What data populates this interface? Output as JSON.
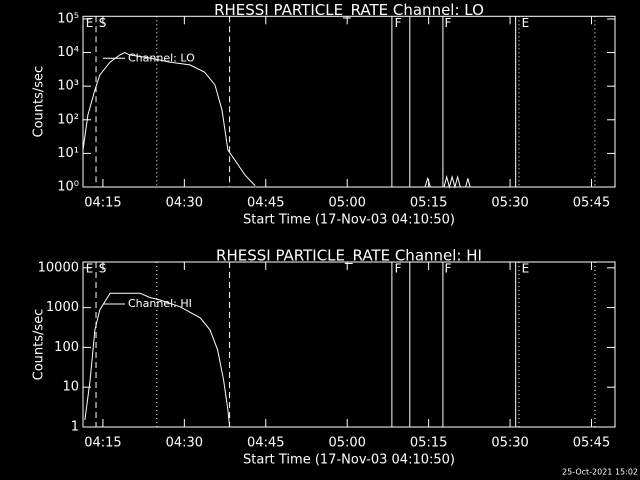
{
  "chart_data": [
    {
      "type": "line",
      "log_y": true,
      "grid": false,
      "title": "RHESSI PARTICLE_RATE Channel: LO",
      "xlabel": "Start Time (17-Nov-03 04:10:50)",
      "ylabel": "Counts/sec",
      "x": [
        0.5,
        1.4,
        2.7,
        3.6,
        5.5,
        7.3,
        8.2,
        9.1,
        12.8,
        16.5,
        20.2,
        22.9,
        24.8,
        26.1,
        27.2,
        28.5,
        30.3,
        32.2,
        40,
        63.5,
        64,
        64.5,
        66,
        67,
        67.5,
        68,
        68.5,
        69,
        69.5,
        70,
        70.5,
        71,
        71.4,
        71.8
      ],
      "series": [
        {
          "name": "Channel: LO",
          "color": "#ffffff",
          "values": [
            12.6,
            140,
            770,
            2150,
            5200,
            8500,
            10000,
            8500,
            6900,
            5200,
            4300,
            2600,
            1100,
            195,
            12.6,
            6.3,
            2.3,
            1.1,
            null,
            1,
            1.8,
            1,
            null,
            1,
            2,
            1,
            2,
            1,
            2,
            1,
            null,
            1,
            1.8,
            1
          ]
        }
      ],
      "xlim": [
        0.5,
        98.5
      ],
      "ylim": [
        1,
        120000
      ],
      "xticks": [
        {
          "value": 4.17,
          "label": "04:15"
        },
        {
          "value": 19.17,
          "label": "04:30"
        },
        {
          "value": 34.17,
          "label": "04:45"
        },
        {
          "value": 49.17,
          "label": "05:00"
        },
        {
          "value": 64.17,
          "label": "05:15"
        },
        {
          "value": 79.17,
          "label": "05:30"
        },
        {
          "value": 94.17,
          "label": "05:45"
        }
      ],
      "yticks": [
        {
          "value": 1,
          "label": "10⁰"
        },
        {
          "value": 10,
          "label": "10¹"
        },
        {
          "value": 100,
          "label": "10²"
        },
        {
          "value": 1000,
          "label": "10³"
        },
        {
          "value": 10000,
          "label": "10⁴"
        },
        {
          "value": 100000,
          "label": "10⁵"
        }
      ],
      "vlines": [
        {
          "x": 2.9,
          "style": "dashed"
        },
        {
          "x": 27.5,
          "style": "dashed"
        },
        {
          "x": 14.1,
          "style": "dotted"
        },
        {
          "x": 57.4,
          "style": "solid"
        },
        {
          "x": 60.7,
          "style": "solid"
        },
        {
          "x": 66.8,
          "style": "solid"
        },
        {
          "x": 80.2,
          "style": "solid"
        },
        {
          "x": 80.8,
          "style": "dotted"
        },
        {
          "x": 94.8,
          "style": "dotted"
        }
      ],
      "annotations": [
        {
          "text": "E",
          "x": 1.0
        },
        {
          "text": "S",
          "x": 3.4
        },
        {
          "text": "F",
          "x": 57.9
        },
        {
          "text": "F",
          "x": 67.1
        },
        {
          "text": "E",
          "x": 81.3
        }
      ]
    },
    {
      "type": "line",
      "log_y": true,
      "grid": false,
      "title": "RHESSI PARTICLE_RATE Channel: HI",
      "xlabel": "Start Time (17-Nov-03 04:10:50)",
      "ylabel": "Counts/sec",
      "x": [
        0.85,
        1.8,
        2.7,
        3.6,
        5.5,
        11.0,
        12.8,
        14.7,
        18.4,
        22.1,
        23.9,
        25.3,
        26.4,
        27.2,
        27.5
      ],
      "series": [
        {
          "name": "Channel: HI",
          "color": "#ffffff",
          "values": [
            1.5,
            15,
            275,
            880,
            2300,
            2300,
            1800,
            1550,
            1050,
            550,
            275,
            87,
            15,
            2.7,
            1
          ]
        }
      ],
      "xlim": [
        0.5,
        98.5
      ],
      "ylim": [
        1,
        14000
      ],
      "xticks": [
        {
          "value": 4.17,
          "label": "04:15"
        },
        {
          "value": 19.17,
          "label": "04:30"
        },
        {
          "value": 34.17,
          "label": "04:45"
        },
        {
          "value": 49.17,
          "label": "05:00"
        },
        {
          "value": 64.17,
          "label": "05:15"
        },
        {
          "value": 79.17,
          "label": "05:30"
        },
        {
          "value": 94.17,
          "label": "05:45"
        }
      ],
      "yticks": [
        1,
        10,
        100,
        1000,
        10000
      ],
      "vlines": [
        {
          "x": 2.9,
          "style": "dashed"
        },
        {
          "x": 27.5,
          "style": "dashed"
        },
        {
          "x": 14.1,
          "style": "dotted"
        },
        {
          "x": 57.4,
          "style": "solid"
        },
        {
          "x": 60.7,
          "style": "solid"
        },
        {
          "x": 66.8,
          "style": "solid"
        },
        {
          "x": 80.2,
          "style": "solid"
        },
        {
          "x": 80.8,
          "style": "dotted"
        },
        {
          "x": 94.8,
          "style": "dotted"
        }
      ],
      "annotations": [
        {
          "text": "E",
          "x": 1.0
        },
        {
          "text": "S",
          "x": 3.4
        },
        {
          "text": "F",
          "x": 57.9
        },
        {
          "text": "F",
          "x": 67.1
        },
        {
          "text": "E",
          "x": 81.3
        }
      ]
    }
  ],
  "footer": "25-Oct-2021 15:02"
}
